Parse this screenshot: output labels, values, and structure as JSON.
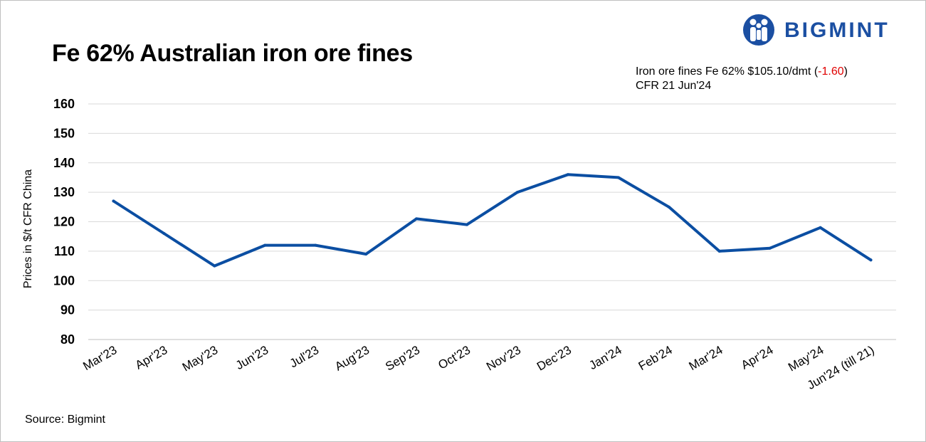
{
  "title": "Fe 62% Australian iron ore fines",
  "brand": {
    "name": "BIGMINT",
    "color": "#1b4fa2",
    "icon": "bigmint-people-logo-icon"
  },
  "price_note": {
    "line1_prefix": "Iron ore fines Fe 62% $105.10/dmt (",
    "change": "-1.60",
    "line1_suffix": ")",
    "line2": "CFR 21 Jun'24",
    "change_color": "#e00000"
  },
  "source": "Source: Bigmint",
  "chart_data": {
    "type": "line",
    "title": "Fe 62% Australian iron ore fines",
    "xlabel": "",
    "ylabel": "Prices in $/t CFR China",
    "categories": [
      "Mar'23",
      "Apr'23",
      "May'23",
      "Jun'23",
      "Jul'23",
      "Aug'23",
      "Sep'23",
      "Oct'23",
      "Nov'23",
      "Dec'23",
      "Jan'24",
      "Feb'24",
      "Mar'24",
      "Apr'24",
      "May'24",
      "Jun'24 (till 21)"
    ],
    "series": [
      {
        "name": "Fe 62% Australian iron ore fines",
        "color": "#0b4ea2",
        "values": [
          127,
          116,
          105,
          112,
          112,
          109,
          121,
          119,
          130,
          136,
          135,
          125,
          110,
          111,
          118,
          107
        ]
      }
    ],
    "ylim": [
      80,
      160
    ],
    "yticks": [
      80,
      90,
      100,
      110,
      120,
      130,
      140,
      150,
      160
    ],
    "grid": true,
    "legend": "none"
  }
}
